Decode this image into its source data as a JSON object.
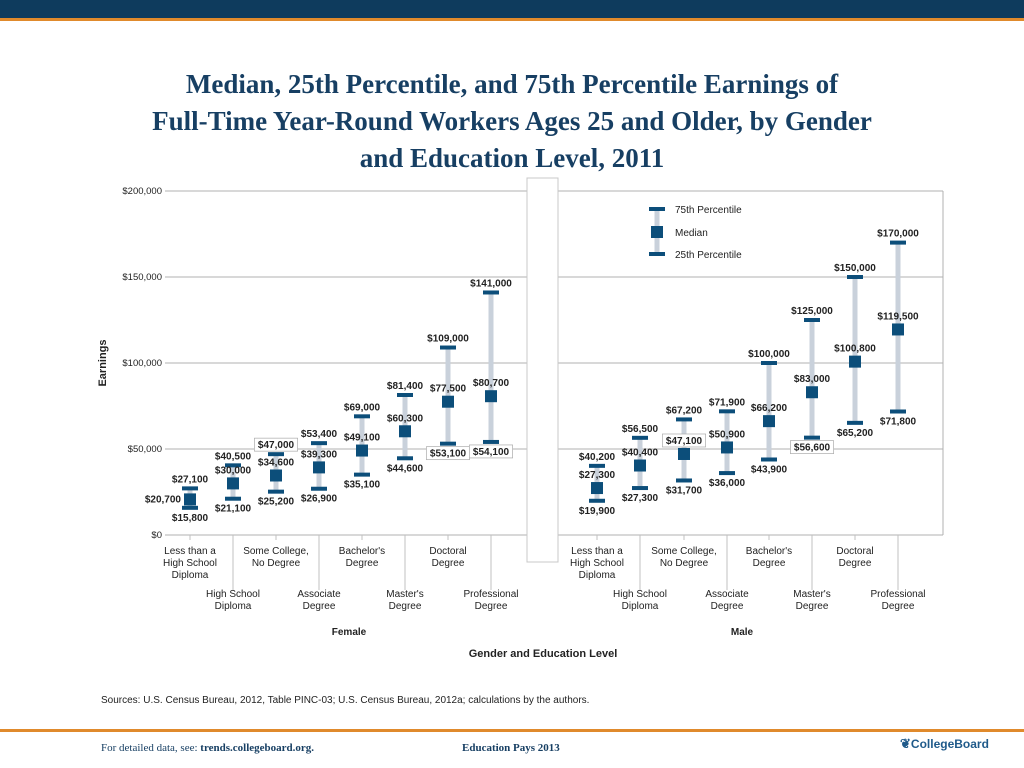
{
  "title_lines": [
    "Median, 25th Percentile, and 75th Percentile Earnings of",
    "Full-Time Year-Round Workers Ages 25 and Older, by Gender",
    "and Education Level, 2011"
  ],
  "chart_data": {
    "type": "error-bar (range with median)",
    "title": "Median, 25th Percentile, and 75th Percentile Earnings of Full-Time Year-Round Workers Ages 25 and Older, by Gender and Education Level, 2011",
    "ylabel": "Earnings",
    "xlabel": "Gender and Education Level",
    "ylim": [
      0,
      200000
    ],
    "yticks": [
      0,
      50000,
      100000,
      150000,
      200000
    ],
    "ytick_labels": [
      "$0",
      "$50,000",
      "$100,000",
      "$150,000",
      "$200,000"
    ],
    "grid": true,
    "legend": {
      "placement": "top-right",
      "entries": [
        "75th Percentile",
        "Median",
        "25th Percentile"
      ]
    },
    "colors": {
      "marker": "#0c4e7a",
      "range": "#c9d1db",
      "grid": "#b0b0b0"
    },
    "categories": [
      "Less than a High School Diploma",
      "High School Diploma",
      "Some College, No Degree",
      "Associate Degree",
      "Bachelor's Degree",
      "Master's Degree",
      "Doctoral Degree",
      "Professional Degree"
    ],
    "category_label_lines": [
      [
        "Less than a",
        "High School",
        "Diploma"
      ],
      [
        "High School",
        "Diploma"
      ],
      [
        "Some College,",
        "No Degree"
      ],
      [
        "Associate",
        "Degree"
      ],
      [
        "Bachelor's",
        "Degree"
      ],
      [
        "Master's",
        "Degree"
      ],
      [
        "Doctoral",
        "Degree"
      ],
      [
        "Professional",
        "Degree"
      ]
    ],
    "groups": [
      {
        "name": "Female",
        "p75": [
          27100,
          40500,
          47000,
          53400,
          69000,
          81400,
          109000,
          141000
        ],
        "median": [
          20700,
          30000,
          34600,
          39300,
          49100,
          60300,
          77500,
          80700
        ],
        "p25": [
          15800,
          21100,
          25200,
          26900,
          35100,
          44600,
          53100,
          54100
        ],
        "p75_labels": [
          "$27,100",
          "$40,500",
          "$47,000",
          "$53,400",
          "$69,000",
          "$81,400",
          "$109,000",
          "$141,000"
        ],
        "median_labels": [
          "$20,700",
          "$30,000",
          "$34,600",
          "$39,300",
          "$49,100",
          "$60,300",
          "$77,500",
          "$80,700"
        ],
        "p25_labels": [
          "$15,800",
          "$21,100",
          "$25,200",
          "$26,900",
          "$35,100",
          "$44,600",
          "$53,100",
          "$54,100"
        ]
      },
      {
        "name": "Male",
        "p75": [
          40200,
          56500,
          67200,
          71900,
          100000,
          125000,
          150000,
          170000
        ],
        "median": [
          27300,
          40400,
          47100,
          50900,
          66200,
          83000,
          100800,
          119500
        ],
        "p25": [
          19900,
          27300,
          31700,
          36000,
          43900,
          56600,
          65200,
          71800
        ],
        "p75_labels": [
          "$40,200",
          "$56,500",
          "$67,200",
          "$71,900",
          "$100,000",
          "$125,000",
          "$150,000",
          "$170,000"
        ],
        "median_labels": [
          "$27,300",
          "$40,400",
          "$47,100",
          "$50,900",
          "$66,200",
          "$83,000",
          "$100,800",
          "$119,500"
        ],
        "p25_labels": [
          "$19,900",
          "$27,300",
          "$31,700",
          "$36,000",
          "$43,900",
          "$56,600",
          "$65,200",
          "$71,800"
        ]
      }
    ]
  },
  "sources": "Sources: U.S. Census Bureau, 2012, Table PINC-03; U.S. Census Bureau, 2012a; calculations by the authors.",
  "footer": {
    "detail_prefix": "For detailed data, see: ",
    "detail_link": "trends.collegeboard.org.",
    "center": "Education Pays 2013",
    "logo": "CollegeBoard"
  }
}
